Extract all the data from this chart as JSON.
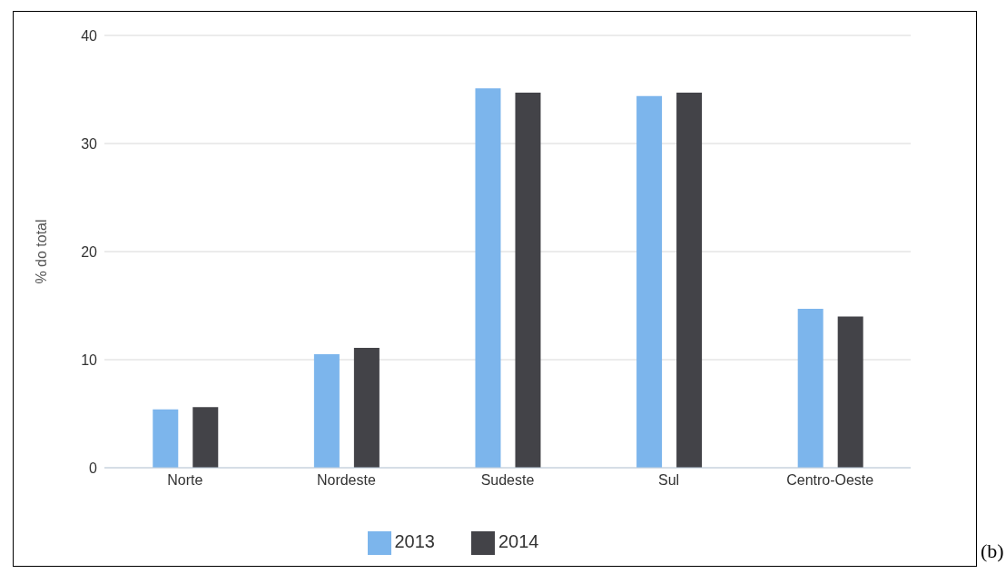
{
  "chart_data": {
    "type": "bar",
    "ylabel": "% do total",
    "categories": [
      "Norte",
      "Nordeste",
      "Sudeste",
      "Sul",
      "Centro-Oeste"
    ],
    "series": [
      {
        "name": "2013",
        "color": "#7cb5ec",
        "values": [
          5.4,
          10.5,
          35.1,
          34.4,
          14.7
        ]
      },
      {
        "name": "2014",
        "color": "#434348",
        "values": [
          5.6,
          11.1,
          34.7,
          34.7,
          14.0
        ]
      }
    ],
    "ylim": [
      0,
      40
    ],
    "yticks": [
      0,
      10,
      20,
      30,
      40
    ],
    "grid": "y",
    "legend": "bottom",
    "annotations": [
      "(b)"
    ]
  }
}
